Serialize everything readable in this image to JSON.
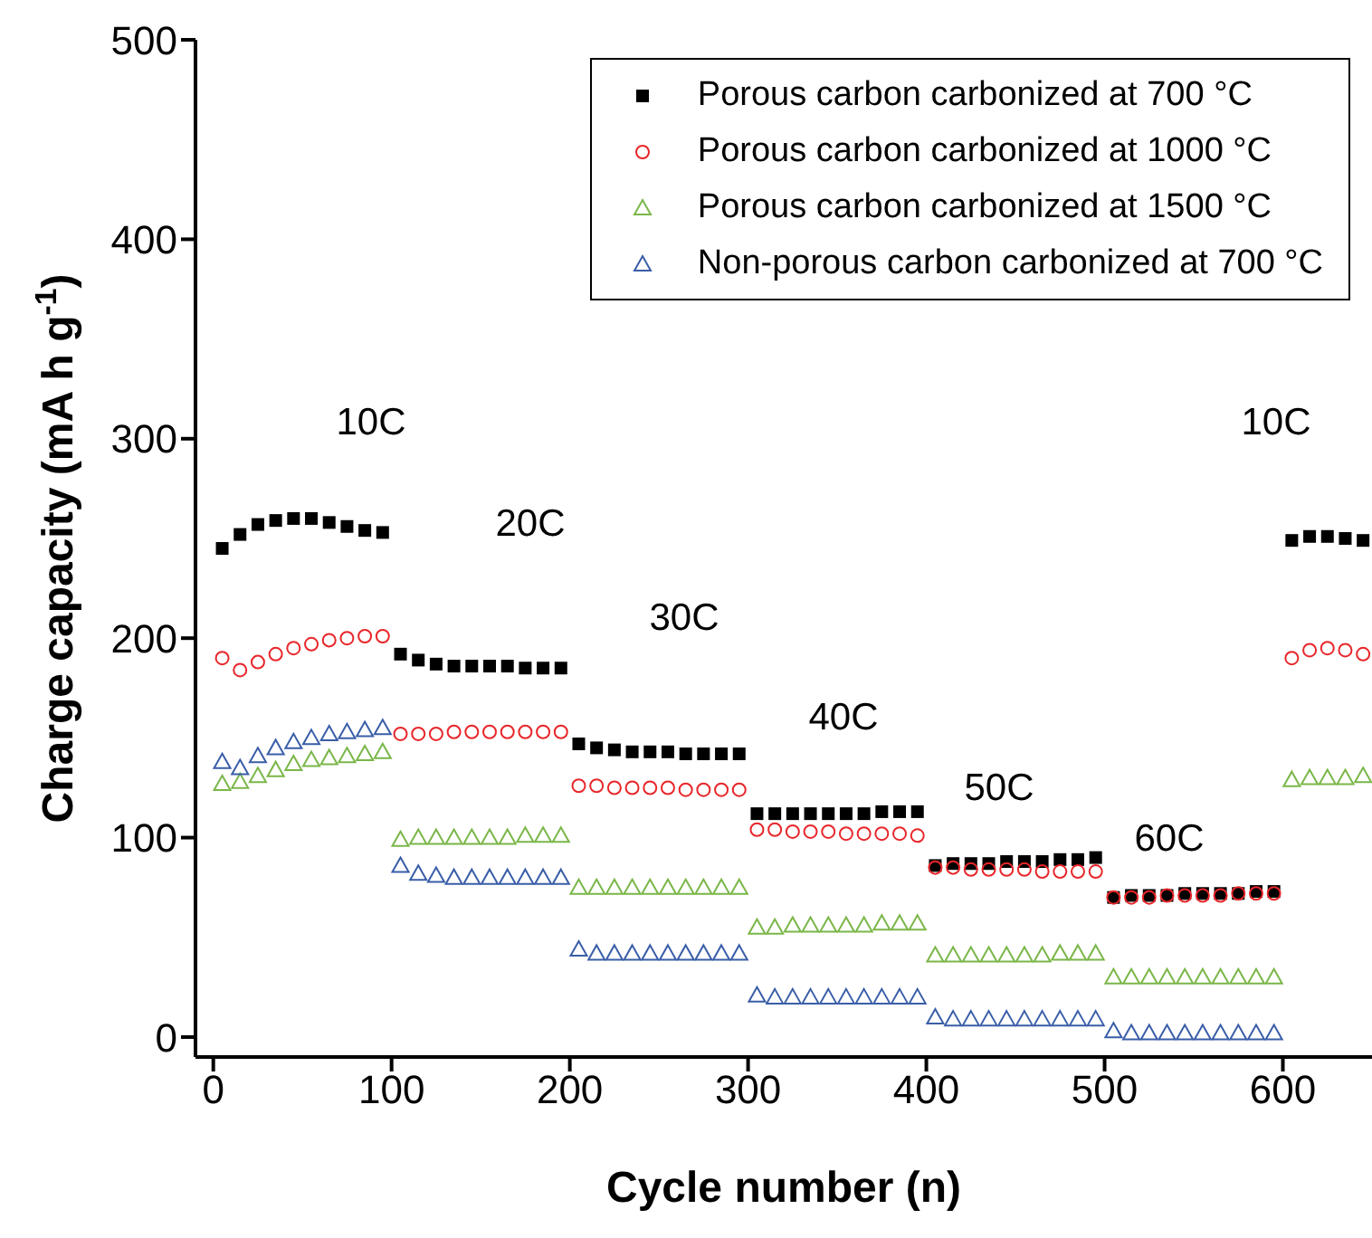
{
  "chart_data": {
    "type": "scatter",
    "xlabel": "Cycle number (n)",
    "ylabel": "Charge capacity (mA h g$^{-1}$)",
    "x": [
      5,
      15,
      25,
      35,
      45,
      55,
      65,
      75,
      85,
      95,
      105,
      115,
      125,
      135,
      145,
      155,
      165,
      175,
      185,
      195,
      205,
      215,
      225,
      235,
      245,
      255,
      265,
      275,
      285,
      295,
      305,
      315,
      325,
      335,
      345,
      355,
      365,
      375,
      385,
      395,
      405,
      415,
      425,
      435,
      445,
      455,
      465,
      475,
      485,
      495,
      505,
      515,
      525,
      535,
      545,
      555,
      565,
      575,
      585,
      595,
      605,
      615,
      625,
      635,
      645
    ],
    "xlim": [
      -10,
      650
    ],
    "xticks": [
      0,
      100,
      200,
      300,
      400,
      500,
      600
    ],
    "ylim": [
      -10,
      500
    ],
    "yticks": [
      0,
      100,
      200,
      300,
      400,
      500
    ],
    "legend": "top right",
    "grid": false,
    "series": [
      {
        "name": "Porous carbon carbonized at 700 °C",
        "color": "#000000",
        "marker": "square",
        "values": [
          245,
          252,
          257,
          259,
          260,
          260,
          258,
          256,
          254,
          253,
          192,
          189,
          187,
          186,
          186,
          186,
          186,
          185,
          185,
          185,
          147,
          145,
          144,
          143,
          143,
          143,
          142,
          142,
          142,
          142,
          112,
          112,
          112,
          112,
          112,
          112,
          112,
          113,
          113,
          113,
          86,
          87,
          87,
          87,
          88,
          88,
          88,
          89,
          89,
          90,
          70,
          71,
          71,
          71,
          72,
          72,
          72,
          72,
          73,
          73,
          249,
          251,
          251,
          250,
          249
        ]
      },
      {
        "name": "Porous carbon carbonized at 1000 °C",
        "color": "#e8262a",
        "marker": "circle",
        "values": [
          190,
          184,
          188,
          192,
          195,
          197,
          199,
          200,
          201,
          201,
          152,
          152,
          152,
          153,
          153,
          153,
          153,
          153,
          153,
          153,
          126,
          126,
          125,
          125,
          125,
          125,
          124,
          124,
          124,
          124,
          104,
          104,
          103,
          103,
          103,
          102,
          102,
          102,
          102,
          101,
          85,
          85,
          84,
          84,
          84,
          84,
          83,
          83,
          83,
          83,
          70,
          70,
          70,
          71,
          71,
          71,
          71,
          72,
          72,
          72,
          190,
          194,
          195,
          194,
          192
        ]
      },
      {
        "name": "Porous carbon carbonized at 1500 °C",
        "color": "#7ab648",
        "marker": "triangle",
        "values": [
          127,
          128,
          131,
          134,
          137,
          139,
          140,
          141,
          142,
          143,
          99,
          100,
          100,
          100,
          100,
          100,
          100,
          101,
          101,
          101,
          75,
          75,
          75,
          75,
          75,
          75,
          75,
          75,
          75,
          75,
          55,
          55,
          56,
          56,
          56,
          56,
          56,
          57,
          57,
          57,
          41,
          41,
          41,
          41,
          41,
          41,
          41,
          42,
          42,
          42,
          30,
          30,
          30,
          30,
          30,
          30,
          30,
          30,
          30,
          30,
          129,
          130,
          130,
          130,
          131
        ]
      },
      {
        "name": "Non-porous carbon carbonized at 700 °C",
        "color": "#3a5ea8",
        "marker": "triangle",
        "values": [
          138,
          135,
          141,
          145,
          148,
          150,
          152,
          153,
          154,
          155,
          86,
          82,
          81,
          80,
          80,
          80,
          80,
          80,
          80,
          80,
          44,
          42,
          42,
          42,
          42,
          42,
          42,
          42,
          42,
          42,
          21,
          20,
          20,
          20,
          20,
          20,
          20,
          20,
          20,
          20,
          10,
          9,
          9,
          9,
          9,
          9,
          9,
          9,
          9,
          9,
          3,
          2,
          2,
          2,
          2,
          2,
          2,
          2,
          2,
          2,
          null,
          null,
          null,
          null,
          null
        ]
      }
    ],
    "annotations": [
      "10C",
      "20C",
      "30C",
      "40C",
      "50C",
      "60C",
      "10C"
    ]
  }
}
